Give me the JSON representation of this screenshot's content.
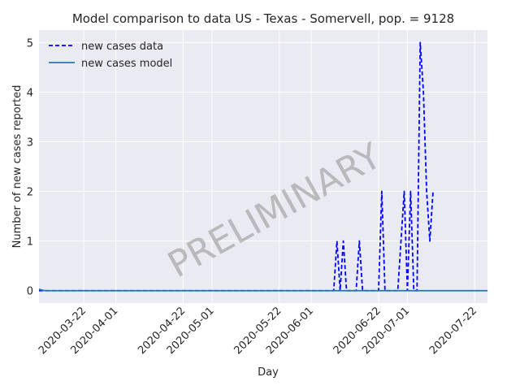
{
  "chart_data": {
    "type": "line",
    "title": "Model comparison to data US - Texas - Somervell, pop. = 9128",
    "xlabel": "Day",
    "ylabel": "Number of new cases reported",
    "watermark": "PRELIMINARY",
    "x_range": [
      "2020-03-08",
      "2020-07-26"
    ],
    "ylim": [
      -0.25,
      5.25
    ],
    "y_ticks": [
      0,
      1,
      2,
      3,
      4,
      5
    ],
    "x_ticks": [
      "2020-03-22",
      "2020-04-01",
      "2020-04-22",
      "2020-05-01",
      "2020-05-22",
      "2020-06-01",
      "2020-06-22",
      "2020-07-01",
      "2020-07-22"
    ],
    "grid": true,
    "legend_position": "top-left",
    "series": [
      {
        "name": "new cases data",
        "style": "dashed",
        "color": "#0000ff",
        "x": [
          "2020-03-08",
          "2020-03-09",
          "2020-06-08",
          "2020-06-09",
          "2020-06-10",
          "2020-06-11",
          "2020-06-12",
          "2020-06-13",
          "2020-06-14",
          "2020-06-15",
          "2020-06-16",
          "2020-06-17",
          "2020-06-18",
          "2020-06-19",
          "2020-06-20",
          "2020-06-21",
          "2020-06-22",
          "2020-06-23",
          "2020-06-24",
          "2020-06-25",
          "2020-06-26",
          "2020-06-27",
          "2020-06-28",
          "2020-06-29",
          "2020-06-30",
          "2020-07-01",
          "2020-07-02",
          "2020-07-03",
          "2020-07-04",
          "2020-07-05",
          "2020-07-06",
          "2020-07-07",
          "2020-07-08",
          "2020-07-09",
          "2020-07-10"
        ],
        "values": [
          0,
          0,
          0,
          1,
          0,
          1,
          0,
          0,
          0,
          0,
          1,
          0,
          0,
          0,
          0,
          0,
          0,
          2,
          0,
          0,
          0,
          0,
          0,
          1,
          2,
          0,
          2,
          0,
          0,
          5,
          4,
          2,
          1,
          2,
          null
        ]
      },
      {
        "name": "new cases model",
        "style": "solid",
        "color": "#1f77b4",
        "x": [
          "2020-03-08",
          "2020-03-09",
          "2020-03-10",
          "2020-07-26"
        ],
        "values": [
          0.03,
          0.01,
          0,
          0
        ]
      }
    ]
  }
}
